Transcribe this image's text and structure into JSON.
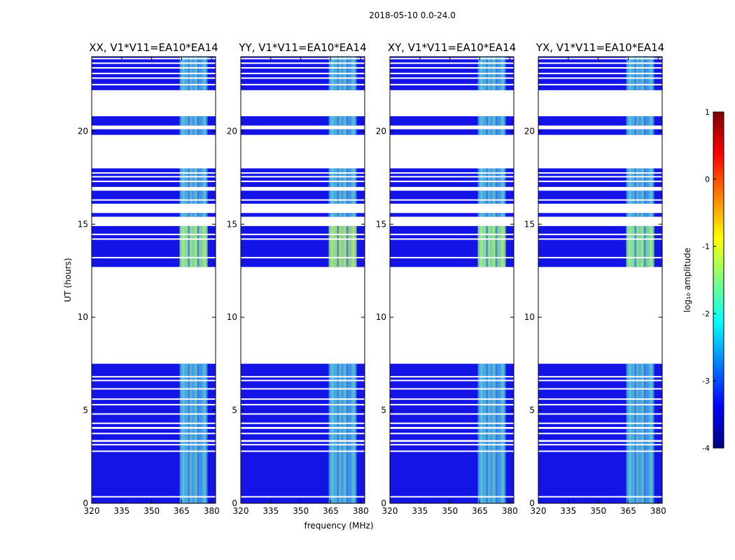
{
  "chart_data": {
    "type": "heatmap",
    "suptitle": "2018-05-10 0.0-24.0",
    "xlabel": "frequency (MHz)",
    "ylabel": "UT (hours)",
    "xlim": [
      320,
      382
    ],
    "ylim": [
      0,
      24
    ],
    "x_ticks": [
      320,
      335,
      350,
      365,
      380
    ],
    "y_ticks": [
      0,
      5,
      10,
      15,
      20
    ],
    "bright_band_mhz": [
      364,
      378
    ],
    "colorbar": {
      "label": "log₁₀ amplitude",
      "range": [
        -4,
        1
      ],
      "ticks": [
        1,
        0,
        -1,
        -2,
        -3,
        -4
      ]
    },
    "data_blocks_hours": [
      [
        0.0,
        3.3
      ],
      [
        3.4,
        4.0
      ],
      [
        4.1,
        7.5
      ],
      [
        12.7,
        14.9
      ],
      [
        15.4,
        15.6
      ],
      [
        16.1,
        16.8
      ],
      [
        17.0,
        18.0
      ],
      [
        19.8,
        20.1
      ],
      [
        20.3,
        20.8
      ],
      [
        22.2,
        24.0
      ]
    ],
    "gap_lines_hours": [
      0.35,
      2.8,
      3.15,
      3.75,
      4.3,
      4.8,
      5.3,
      5.6,
      6.15,
      6.6,
      6.8,
      13.2,
      14.2,
      14.45,
      16.3,
      17.3,
      17.55,
      17.75,
      22.5,
      22.85,
      23.1,
      23.4,
      23.65,
      23.9
    ],
    "panels": [
      {
        "title": "XX, V1*V11=EA10*EA14",
        "peak_log10_amplitude": -1.0
      },
      {
        "title": "YY, V1*V11=EA10*EA14",
        "peak_log10_amplitude": -0.8
      },
      {
        "title": "XY, V1*V11=EA10*EA14",
        "peak_log10_amplitude": -1.0
      },
      {
        "title": "YX, V1*V11=EA10*EA14",
        "peak_log10_amplitude": -1.1
      }
    ]
  }
}
